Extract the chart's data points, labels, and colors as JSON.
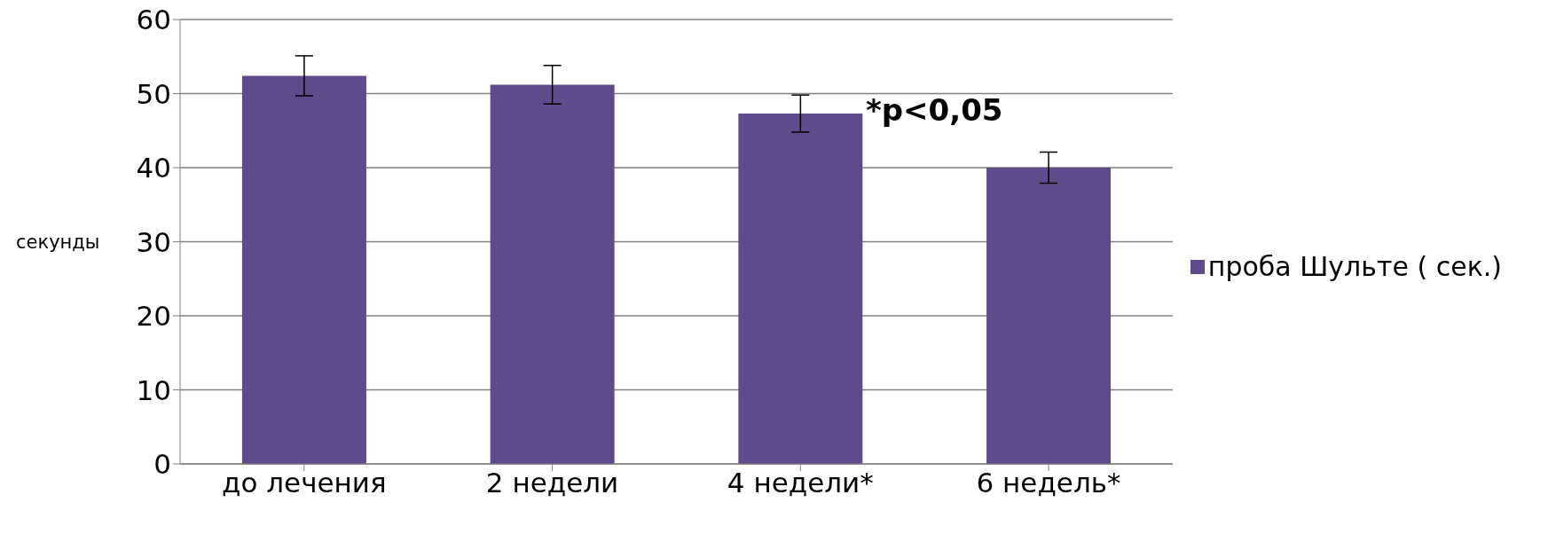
{
  "chart_data": {
    "type": "bar",
    "ylabel": "секунды",
    "categories": [
      "до лечения",
      "2 недели",
      "4 недели*",
      "6 недель*"
    ],
    "series": [
      {
        "name": "проба Шульте ( сек.)",
        "color": "#5f4a8b",
        "values": [
          52.4,
          51.2,
          47.3,
          40.0
        ],
        "errors": [
          2.7,
          2.6,
          2.5,
          2.1
        ]
      }
    ],
    "ylim": [
      0,
      60
    ],
    "yticks": [
      0,
      10,
      20,
      30,
      40,
      50,
      60
    ],
    "grid": "y",
    "legend": "right",
    "annotations": [
      "*p<0,05"
    ]
  }
}
